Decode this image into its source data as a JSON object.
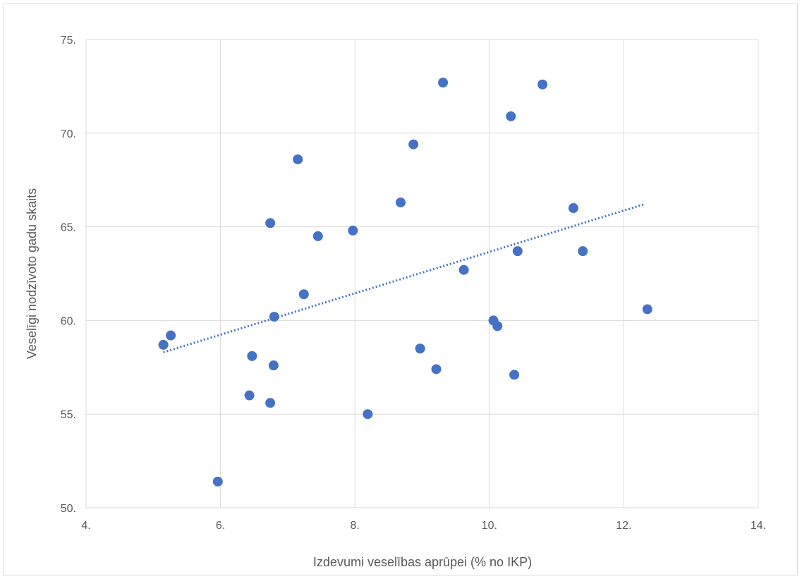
{
  "chart_data": {
    "type": "scatter",
    "xlabel": "Izdevumi  veselības aprūpei (% no IKP)",
    "ylabel": "Veselīgi nodzīvoto gadu skaits",
    "xlim": [
      4,
      14
    ],
    "ylim": [
      50,
      75
    ],
    "x_ticks": [
      4,
      6,
      8,
      10,
      12,
      14
    ],
    "y_ticks": [
      50,
      55,
      60,
      65,
      70,
      75
    ],
    "x_tick_labels": [
      "4.",
      "6.",
      "8.",
      "10.",
      "12.",
      "14."
    ],
    "y_tick_labels": [
      "50.",
      "55.",
      "60.",
      "65.",
      "70.",
      "75."
    ],
    "grid": true,
    "marker_color": "#4472c4",
    "trendline": {
      "type": "linear",
      "style": "dotted",
      "from": [
        5.15,
        58.3
      ],
      "to": [
        12.3,
        66.2
      ]
    },
    "points": [
      {
        "x": 5.15,
        "y": 58.7
      },
      {
        "x": 5.26,
        "y": 59.2
      },
      {
        "x": 5.96,
        "y": 51.4
      },
      {
        "x": 6.43,
        "y": 56.0
      },
      {
        "x": 6.47,
        "y": 58.1
      },
      {
        "x": 6.74,
        "y": 55.6
      },
      {
        "x": 6.74,
        "y": 65.2
      },
      {
        "x": 6.79,
        "y": 57.6
      },
      {
        "x": 6.8,
        "y": 60.2
      },
      {
        "x": 7.15,
        "y": 68.6
      },
      {
        "x": 7.24,
        "y": 61.4
      },
      {
        "x": 7.45,
        "y": 64.5
      },
      {
        "x": 7.97,
        "y": 64.8
      },
      {
        "x": 8.19,
        "y": 55.0
      },
      {
        "x": 8.68,
        "y": 66.3
      },
      {
        "x": 8.87,
        "y": 69.4
      },
      {
        "x": 8.97,
        "y": 58.5
      },
      {
        "x": 9.21,
        "y": 57.4
      },
      {
        "x": 9.31,
        "y": 72.7
      },
      {
        "x": 9.62,
        "y": 62.7
      },
      {
        "x": 10.06,
        "y": 60.0
      },
      {
        "x": 10.12,
        "y": 59.7
      },
      {
        "x": 10.32,
        "y": 70.9
      },
      {
        "x": 10.37,
        "y": 57.1
      },
      {
        "x": 10.42,
        "y": 63.7
      },
      {
        "x": 10.79,
        "y": 72.6
      },
      {
        "x": 11.25,
        "y": 66.0
      },
      {
        "x": 11.39,
        "y": 63.7
      },
      {
        "x": 12.35,
        "y": 60.6
      }
    ]
  }
}
